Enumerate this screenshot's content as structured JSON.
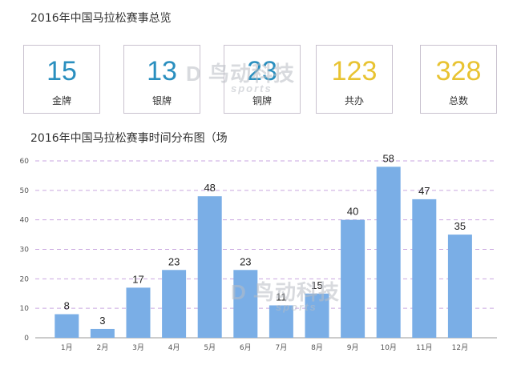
{
  "summary": {
    "title": "2016年中国马拉松赛事总览",
    "cards": [
      {
        "value": "15",
        "label": "金牌",
        "color": "#2a8fbf"
      },
      {
        "value": "13",
        "label": "银牌",
        "color": "#2a8fbf"
      },
      {
        "value": "23",
        "label": "铜牌",
        "color": "#2a8fbf"
      },
      {
        "value": "123",
        "label": "共办",
        "color": "#e8c332"
      },
      {
        "value": "328",
        "label": "总数",
        "color": "#e8c332"
      }
    ]
  },
  "watermark": {
    "main": "D 鸟动科技",
    "sub": "sports"
  },
  "chart_data": {
    "type": "bar",
    "title": "2016年中国马拉松赛事时间分布图（场",
    "categories": [
      "1月",
      "2月",
      "3月",
      "4月",
      "5月",
      "6月",
      "7月",
      "8月",
      "9月",
      "10月",
      "11月",
      "12月"
    ],
    "values": [
      8,
      3,
      17,
      23,
      48,
      23,
      11,
      15,
      40,
      58,
      47,
      35
    ],
    "ylim": [
      0,
      60
    ],
    "yticks": [
      0,
      10,
      20,
      30,
      40,
      50,
      60
    ],
    "grid": true,
    "bar_color": "#7aaee6",
    "grid_color": "#c9a6e0",
    "xlabel": "",
    "ylabel": ""
  }
}
